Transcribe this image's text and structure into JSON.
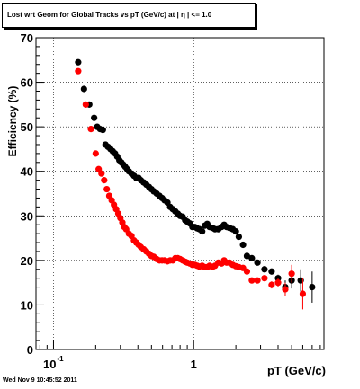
{
  "chart_data": {
    "type": "scatter",
    "title": "Lost wrt Geom for Global Tracks vs pT (GeV/c) at | η | <= 1.0",
    "xlabel": "pT (GeV/c)",
    "ylabel": "Efficiency (%)",
    "x_scale": "log",
    "xlim": [
      0.075,
      8.5
    ],
    "ylim": [
      0,
      70
    ],
    "x_ticks": [
      "10",
      "1"
    ],
    "x_tick_exp": "-1",
    "y_ticks": [
      0,
      10,
      20,
      30,
      40,
      50,
      60,
      70
    ],
    "grid": true,
    "footer": "Wed Nov  9 10:45:52 2011",
    "series": [
      {
        "color": "#000000",
        "points": [
          [
            0.15,
            64.5
          ],
          [
            0.165,
            58.5
          ],
          [
            0.18,
            55
          ],
          [
            0.195,
            52
          ],
          [
            0.205,
            50
          ],
          [
            0.215,
            49.5
          ],
          [
            0.225,
            49.3
          ],
          [
            0.235,
            46
          ],
          [
            0.245,
            45.5
          ],
          [
            0.255,
            45
          ],
          [
            0.265,
            44.5
          ],
          [
            0.275,
            44
          ],
          [
            0.285,
            43.3
          ],
          [
            0.295,
            42.5
          ],
          [
            0.305,
            42
          ],
          [
            0.315,
            41.5
          ],
          [
            0.325,
            41
          ],
          [
            0.335,
            40.5
          ],
          [
            0.345,
            40
          ],
          [
            0.36,
            39.5
          ],
          [
            0.375,
            39
          ],
          [
            0.39,
            38.5
          ],
          [
            0.405,
            38.5
          ],
          [
            0.42,
            38
          ],
          [
            0.44,
            37.5
          ],
          [
            0.46,
            37
          ],
          [
            0.48,
            36.5
          ],
          [
            0.5,
            36
          ],
          [
            0.52,
            35.5
          ],
          [
            0.545,
            35
          ],
          [
            0.57,
            34.5
          ],
          [
            0.595,
            34
          ],
          [
            0.62,
            33.5
          ],
          [
            0.65,
            33
          ],
          [
            0.68,
            32
          ],
          [
            0.71,
            31.5
          ],
          [
            0.74,
            31
          ],
          [
            0.77,
            30.5
          ],
          [
            0.8,
            30
          ],
          [
            0.835,
            29.8
          ],
          [
            0.87,
            29
          ],
          [
            0.9,
            28.7
          ],
          [
            0.94,
            28.3
          ],
          [
            0.98,
            27.5
          ],
          [
            1.02,
            27.5
          ],
          [
            1.06,
            27.2
          ],
          [
            1.1,
            27
          ],
          [
            1.15,
            26.5
          ],
          [
            1.2,
            27.8
          ],
          [
            1.25,
            28.2
          ],
          [
            1.3,
            27.5
          ],
          [
            1.36,
            27.3
          ],
          [
            1.42,
            27
          ],
          [
            1.5,
            27
          ],
          [
            1.58,
            27.5
          ],
          [
            1.65,
            28
          ],
          [
            1.72,
            27.5
          ],
          [
            1.8,
            27.3
          ],
          [
            1.9,
            27
          ],
          [
            2.0,
            26.5
          ],
          [
            2.1,
            25.3
          ],
          [
            2.25,
            23.5
          ],
          [
            2.4,
            21
          ],
          [
            2.6,
            20.5
          ],
          [
            2.85,
            19.5
          ],
          [
            3.2,
            18
          ],
          [
            3.6,
            17.5
          ],
          [
            4.0,
            16
          ],
          [
            4.5,
            14
          ],
          [
            5.0,
            15.5
          ],
          [
            5.8,
            15.5
          ],
          [
            7.0,
            14
          ]
        ],
        "errors": [
          0,
          0,
          0,
          0,
          0,
          0,
          0,
          0,
          0,
          0,
          0,
          0,
          0,
          0,
          0,
          0,
          0,
          0,
          0,
          0,
          0,
          0,
          0,
          0,
          0,
          0,
          0,
          0,
          0,
          0,
          0,
          0,
          0,
          0,
          0,
          0,
          0,
          0,
          0,
          0,
          0,
          0,
          0,
          0,
          0,
          0,
          0,
          0,
          0,
          0,
          0,
          0,
          0,
          0,
          0,
          0,
          0,
          0,
          0,
          0,
          0,
          0,
          0,
          0,
          0,
          0,
          0.6,
          0.8,
          1.5,
          1.8,
          2.5,
          3.5
        ]
      },
      {
        "color": "#ff0000",
        "points": [
          [
            0.15,
            62.5
          ],
          [
            0.17,
            55
          ],
          [
            0.185,
            49.5
          ],
          [
            0.2,
            44
          ],
          [
            0.21,
            40.5
          ],
          [
            0.22,
            39.5
          ],
          [
            0.23,
            38
          ],
          [
            0.24,
            36
          ],
          [
            0.25,
            34.5
          ],
          [
            0.26,
            33.5
          ],
          [
            0.27,
            32.5
          ],
          [
            0.28,
            31.5
          ],
          [
            0.29,
            30.5
          ],
          [
            0.3,
            29.5
          ],
          [
            0.31,
            28.5
          ],
          [
            0.32,
            27.5
          ],
          [
            0.33,
            27
          ],
          [
            0.345,
            26
          ],
          [
            0.36,
            25.5
          ],
          [
            0.375,
            24.5
          ],
          [
            0.39,
            24
          ],
          [
            0.405,
            23.5
          ],
          [
            0.42,
            23
          ],
          [
            0.44,
            22.5
          ],
          [
            0.46,
            22
          ],
          [
            0.48,
            21.5
          ],
          [
            0.5,
            21
          ],
          [
            0.52,
            20.8
          ],
          [
            0.545,
            20.3
          ],
          [
            0.57,
            20
          ],
          [
            0.595,
            20
          ],
          [
            0.62,
            20
          ],
          [
            0.65,
            19.8
          ],
          [
            0.68,
            20
          ],
          [
            0.71,
            20
          ],
          [
            0.74,
            20.5
          ],
          [
            0.77,
            20.5
          ],
          [
            0.8,
            20.3
          ],
          [
            0.835,
            20
          ],
          [
            0.87,
            19.7
          ],
          [
            0.9,
            19.5
          ],
          [
            0.94,
            19.3
          ],
          [
            0.98,
            19
          ],
          [
            1.02,
            19
          ],
          [
            1.06,
            18.8
          ],
          [
            1.1,
            18.6
          ],
          [
            1.15,
            18.8
          ],
          [
            1.2,
            18.5
          ],
          [
            1.25,
            18.5
          ],
          [
            1.3,
            18.8
          ],
          [
            1.36,
            18.5
          ],
          [
            1.42,
            18.8
          ],
          [
            1.5,
            19.5
          ],
          [
            1.58,
            19.3
          ],
          [
            1.65,
            20
          ],
          [
            1.72,
            19.5
          ],
          [
            1.8,
            19.5
          ],
          [
            1.9,
            19
          ],
          [
            2.0,
            18.7
          ],
          [
            2.1,
            18.5
          ],
          [
            2.25,
            18.3
          ],
          [
            2.4,
            17.5
          ],
          [
            2.6,
            15.5
          ],
          [
            2.85,
            15.5
          ],
          [
            3.2,
            16
          ],
          [
            3.6,
            14.5
          ],
          [
            4.0,
            15
          ],
          [
            4.5,
            13.5
          ],
          [
            5.0,
            17
          ],
          [
            6.0,
            12.5
          ]
        ],
        "errors": [
          0,
          0,
          0,
          0,
          0,
          0,
          0,
          0,
          0,
          0,
          0,
          0,
          0,
          0,
          0,
          0,
          0,
          0,
          0,
          0,
          0,
          0,
          0,
          0,
          0,
          0,
          0,
          0,
          0,
          0,
          0,
          0,
          0,
          0,
          0,
          0,
          0,
          0,
          0,
          0,
          0,
          0,
          0,
          0,
          0,
          0,
          0,
          0,
          0,
          0,
          0,
          0,
          0,
          0,
          0,
          0,
          0,
          0,
          0,
          0,
          0,
          0,
          0,
          0,
          0,
          0.8,
          1.0,
          1.5,
          2.0,
          3.5
        ]
      }
    ]
  }
}
